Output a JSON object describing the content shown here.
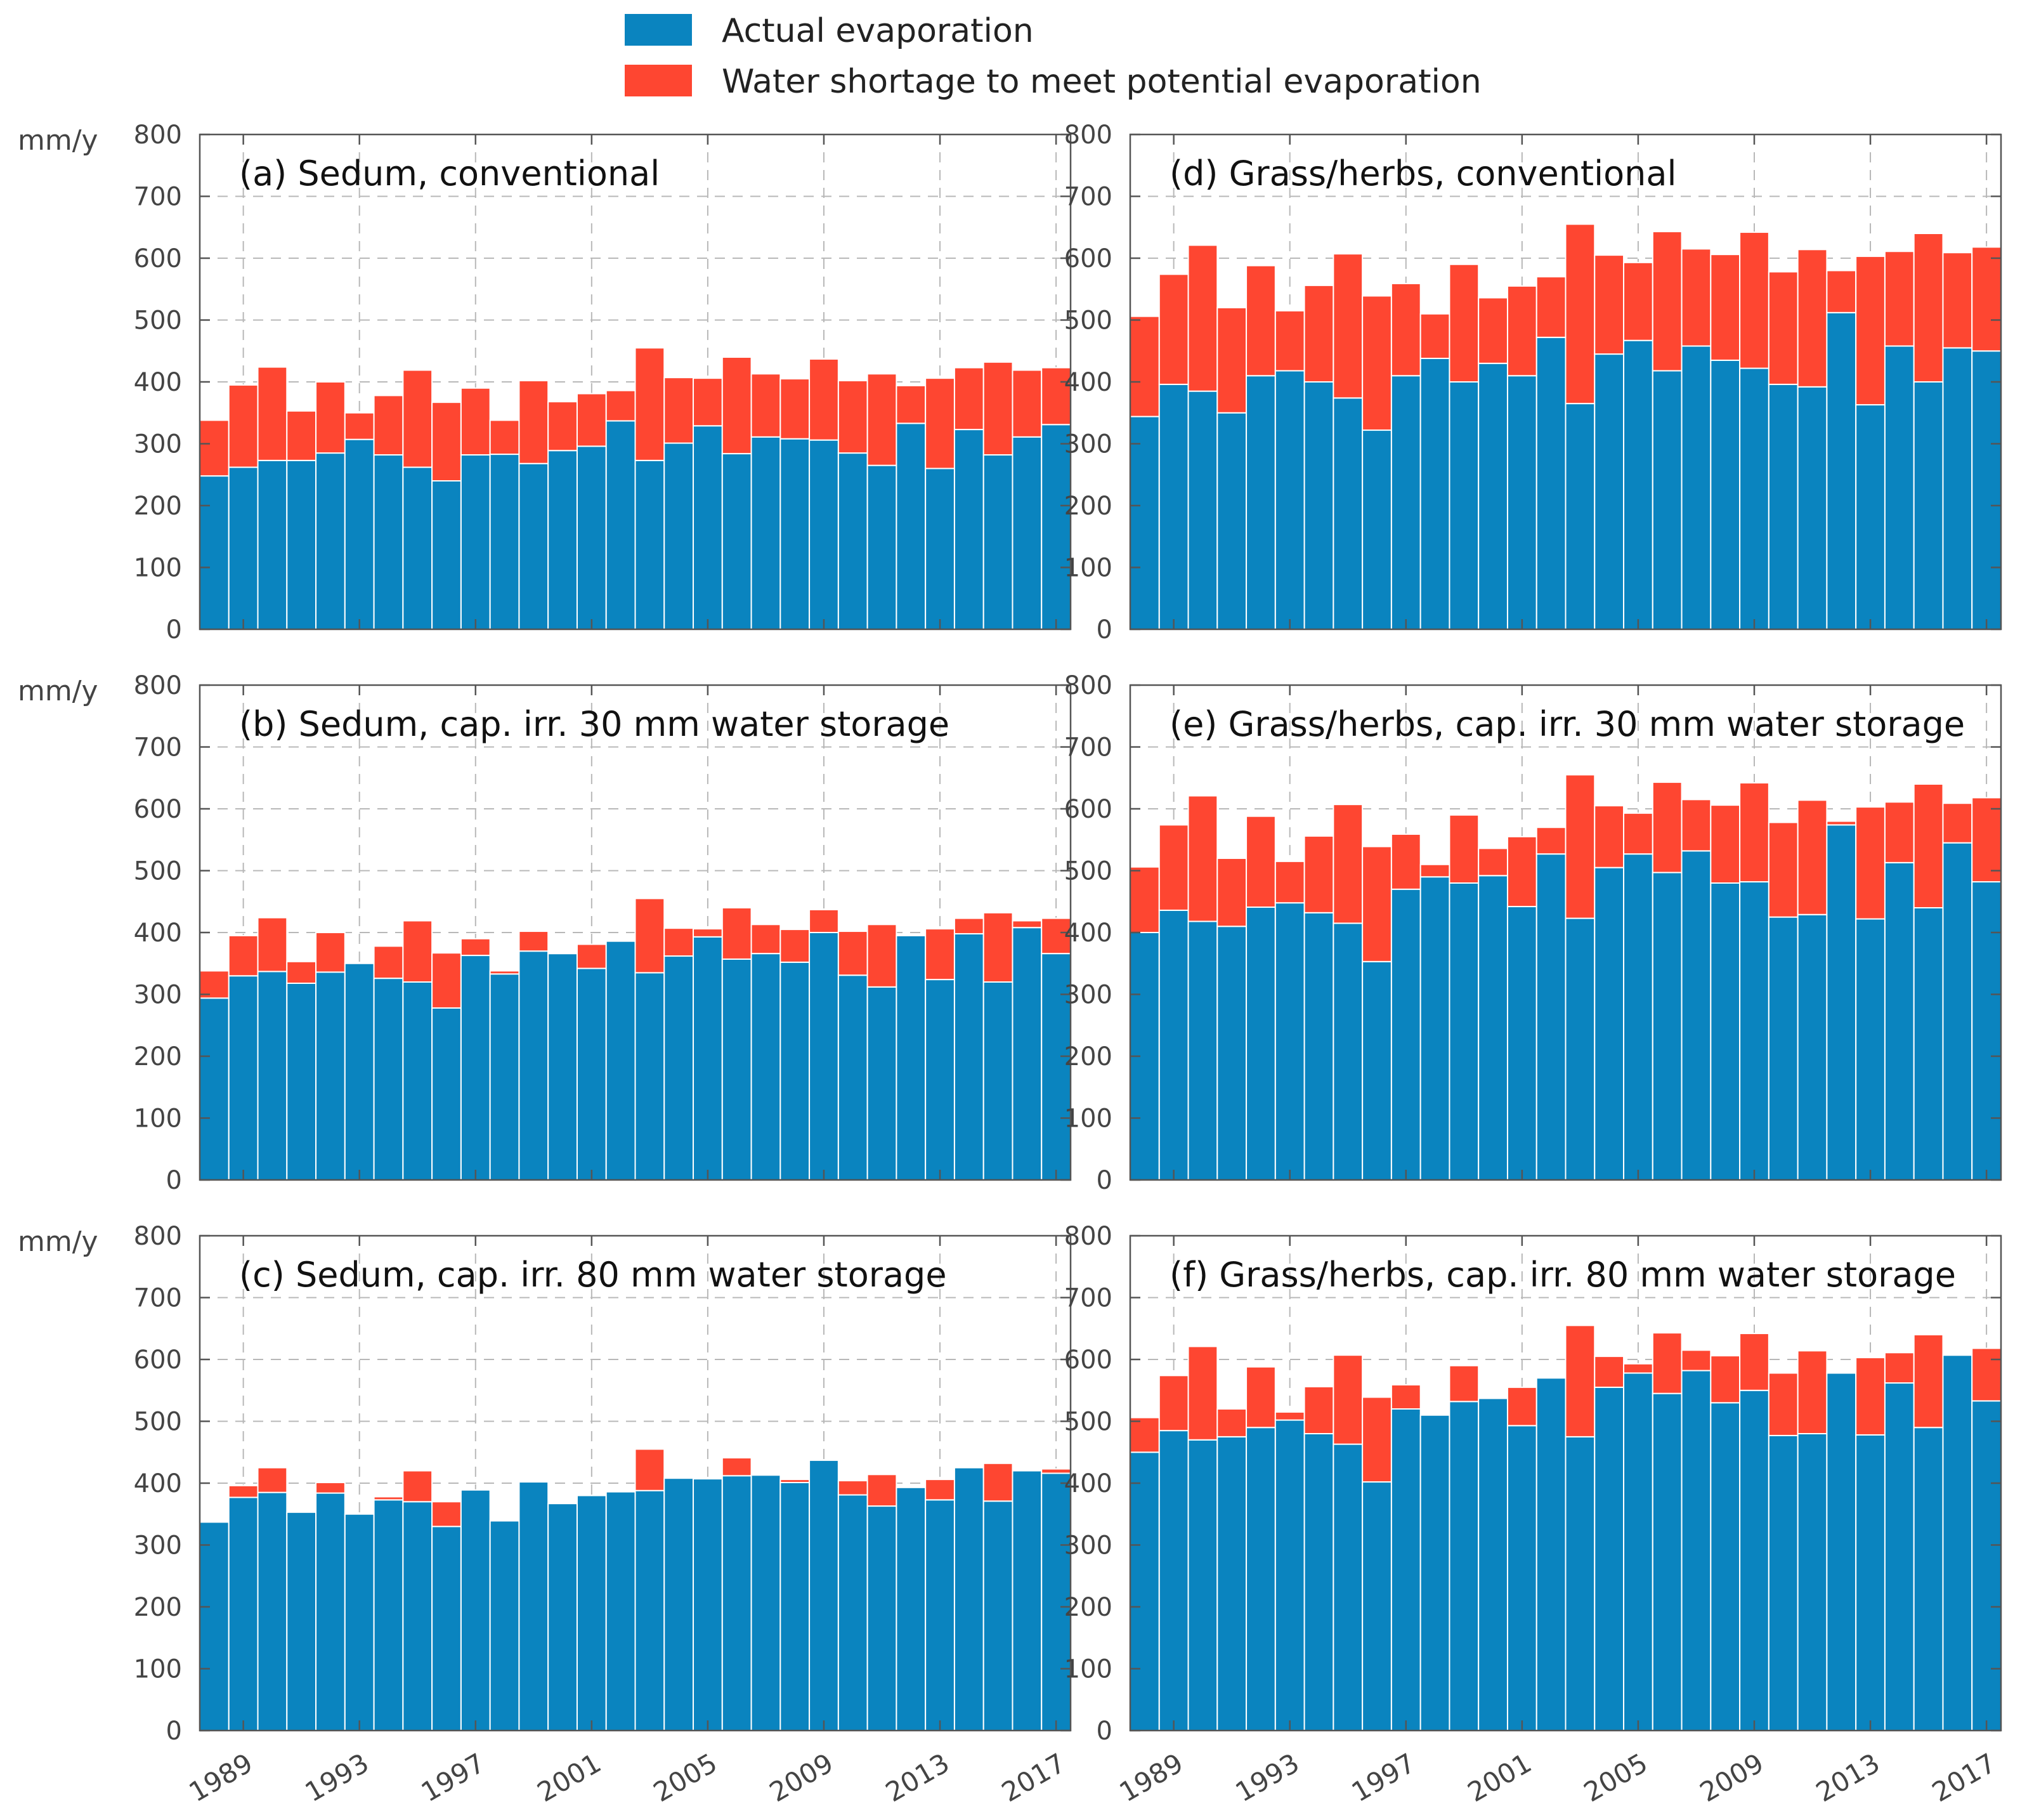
{
  "figure": {
    "unit_label": "mm/y",
    "legend": [
      {
        "label": "Actual evaporation",
        "color": "#0a84bf"
      },
      {
        "label": "Water shortage to meet potential evaporation",
        "color": "#fe4631"
      }
    ]
  },
  "chart_data": [
    {
      "type": "bar",
      "stacked": true,
      "panel": "a",
      "title": "(a) Sedum, conventional",
      "xlabel": "",
      "ylabel": "mm/y",
      "ylim": [
        0,
        800
      ],
      "yticks": [
        0,
        100,
        200,
        300,
        400,
        500,
        600,
        700,
        800
      ],
      "categories": [
        1988,
        1989,
        1990,
        1991,
        1992,
        1993,
        1994,
        1995,
        1996,
        1997,
        1998,
        1999,
        2000,
        2001,
        2002,
        2003,
        2004,
        2005,
        2006,
        2007,
        2008,
        2009,
        2010,
        2011,
        2012,
        2013,
        2014,
        2015,
        2016,
        2017
      ],
      "xtick_labels": [
        "1989",
        "1993",
        "1997",
        "2001",
        "2005",
        "2009",
        "2013",
        "2017"
      ],
      "grid": true,
      "series": [
        {
          "name": "Actual evaporation",
          "values": [
            248,
            262,
            273,
            273,
            285,
            307,
            282,
            262,
            240,
            282,
            283,
            268,
            289,
            296,
            337,
            273,
            301,
            329,
            284,
            311,
            308,
            306,
            285,
            265,
            333,
            260,
            323,
            282,
            311,
            331
          ]
        },
        {
          "name": "Water shortage to meet potential evaporation",
          "values": [
            90,
            133,
            151,
            80,
            115,
            43,
            96,
            157,
            127,
            108,
            55,
            134,
            79,
            85,
            49,
            182,
            106,
            77,
            156,
            102,
            97,
            131,
            117,
            148,
            61,
            146,
            100,
            150,
            108,
            92
          ]
        }
      ]
    },
    {
      "type": "bar",
      "stacked": true,
      "panel": "b",
      "title": "(b) Sedum, cap. irr. 30 mm water storage",
      "xlabel": "",
      "ylabel": "mm/y",
      "ylim": [
        0,
        800
      ],
      "yticks": [
        0,
        100,
        200,
        300,
        400,
        500,
        600,
        700,
        800
      ],
      "categories": [
        1988,
        1989,
        1990,
        1991,
        1992,
        1993,
        1994,
        1995,
        1996,
        1997,
        1998,
        1999,
        2000,
        2001,
        2002,
        2003,
        2004,
        2005,
        2006,
        2007,
        2008,
        2009,
        2010,
        2011,
        2012,
        2013,
        2014,
        2015,
        2016,
        2017
      ],
      "xtick_labels": [
        "1989",
        "1993",
        "1997",
        "2001",
        "2005",
        "2009",
        "2013",
        "2017"
      ],
      "grid": true,
      "series": [
        {
          "name": "Actual evaporation",
          "values": [
            294,
            330,
            337,
            318,
            336,
            350,
            326,
            320,
            278,
            363,
            333,
            370,
            366,
            342,
            386,
            335,
            362,
            393,
            357,
            366,
            352,
            400,
            331,
            312,
            395,
            324,
            398,
            320,
            408,
            366
          ]
        },
        {
          "name": "Water shortage to meet potential evaporation",
          "values": [
            44,
            65,
            87,
            35,
            64,
            0,
            52,
            99,
            89,
            27,
            5,
            32,
            2,
            39,
            0,
            120,
            45,
            13,
            83,
            47,
            53,
            37,
            71,
            101,
            0,
            82,
            25,
            112,
            11,
            57
          ]
        }
      ]
    },
    {
      "type": "bar",
      "stacked": true,
      "panel": "c",
      "title": "(c) Sedum, cap. irr. 80 mm water storage",
      "xlabel": "",
      "ylabel": "mm/y",
      "ylim": [
        0,
        800
      ],
      "yticks": [
        0,
        100,
        200,
        300,
        400,
        500,
        600,
        700,
        800
      ],
      "categories": [
        1988,
        1989,
        1990,
        1991,
        1992,
        1993,
        1994,
        1995,
        1996,
        1997,
        1998,
        1999,
        2000,
        2001,
        2002,
        2003,
        2004,
        2005,
        2006,
        2007,
        2008,
        2009,
        2010,
        2011,
        2012,
        2013,
        2014,
        2015,
        2016,
        2017
      ],
      "xtick_labels": [
        "1989",
        "1993",
        "1997",
        "2001",
        "2005",
        "2009",
        "2013",
        "2017"
      ],
      "grid": true,
      "series": [
        {
          "name": "Actual evaporation",
          "values": [
            337,
            377,
            385,
            353,
            384,
            350,
            373,
            370,
            330,
            389,
            339,
            402,
            367,
            380,
            386,
            388,
            408,
            407,
            412,
            413,
            401,
            437,
            381,
            363,
            393,
            373,
            425,
            371,
            420,
            416
          ]
        },
        {
          "name": "Water shortage to meet potential evaporation",
          "values": [
            0,
            19,
            40,
            0,
            17,
            0,
            5,
            50,
            40,
            0,
            0,
            0,
            0,
            0,
            0,
            67,
            0,
            0,
            29,
            0,
            5,
            0,
            23,
            51,
            0,
            33,
            0,
            61,
            0,
            7
          ]
        }
      ]
    },
    {
      "type": "bar",
      "stacked": true,
      "panel": "d",
      "title": "(d) Grass/herbs, conventional",
      "xlabel": "",
      "ylabel": "mm/y",
      "ylim": [
        0,
        800
      ],
      "yticks": [
        0,
        100,
        200,
        300,
        400,
        500,
        600,
        700,
        800
      ],
      "categories": [
        1988,
        1989,
        1990,
        1991,
        1992,
        1993,
        1994,
        1995,
        1996,
        1997,
        1998,
        1999,
        2000,
        2001,
        2002,
        2003,
        2004,
        2005,
        2006,
        2007,
        2008,
        2009,
        2010,
        2011,
        2012,
        2013,
        2014,
        2015,
        2016,
        2017
      ],
      "xtick_labels": [
        "1989",
        "1993",
        "1997",
        "2001",
        "2005",
        "2009",
        "2013",
        "2017"
      ],
      "grid": true,
      "series": [
        {
          "name": "Actual evaporation",
          "values": [
            344,
            396,
            385,
            350,
            410,
            418,
            400,
            374,
            322,
            410,
            438,
            400,
            430,
            410,
            472,
            365,
            445,
            467,
            418,
            458,
            435,
            422,
            396,
            392,
            512,
            363,
            458,
            400,
            455,
            450
          ]
        },
        {
          "name": "Water shortage to meet potential evaporation",
          "values": [
            162,
            178,
            236,
            170,
            178,
            97,
            156,
            233,
            217,
            149,
            72,
            190,
            106,
            145,
            98,
            290,
            160,
            126,
            225,
            157,
            171,
            220,
            182,
            222,
            68,
            240,
            153,
            240,
            154,
            168
          ]
        }
      ]
    },
    {
      "type": "bar",
      "stacked": true,
      "panel": "e",
      "title": "(e) Grass/herbs, cap. irr. 30 mm water storage",
      "xlabel": "",
      "ylabel": "mm/y",
      "ylim": [
        0,
        800
      ],
      "yticks": [
        0,
        100,
        200,
        300,
        400,
        500,
        600,
        700,
        800
      ],
      "categories": [
        1988,
        1989,
        1990,
        1991,
        1992,
        1993,
        1994,
        1995,
        1996,
        1997,
        1998,
        1999,
        2000,
        2001,
        2002,
        2003,
        2004,
        2005,
        2006,
        2007,
        2008,
        2009,
        2010,
        2011,
        2012,
        2013,
        2014,
        2015,
        2016,
        2017
      ],
      "xtick_labels": [
        "1989",
        "1993",
        "1997",
        "2001",
        "2005",
        "2009",
        "2013",
        "2017"
      ],
      "grid": true,
      "series": [
        {
          "name": "Actual evaporation",
          "values": [
            400,
            436,
            418,
            410,
            441,
            448,
            432,
            415,
            353,
            470,
            490,
            480,
            492,
            442,
            527,
            423,
            505,
            527,
            497,
            532,
            480,
            482,
            425,
            429,
            574,
            422,
            513,
            440,
            545,
            482
          ]
        },
        {
          "name": "Water shortage to meet potential evaporation",
          "values": [
            106,
            138,
            203,
            110,
            147,
            67,
            124,
            192,
            186,
            89,
            20,
            110,
            44,
            113,
            43,
            232,
            100,
            66,
            146,
            83,
            126,
            160,
            153,
            185,
            6,
            181,
            98,
            200,
            64,
            136
          ]
        }
      ]
    },
    {
      "type": "bar",
      "stacked": true,
      "panel": "f",
      "title": "(f) Grass/herbs, cap. irr. 80 mm water storage",
      "xlabel": "",
      "ylabel": "mm/y",
      "ylim": [
        0,
        800
      ],
      "yticks": [
        0,
        100,
        200,
        300,
        400,
        500,
        600,
        700,
        800
      ],
      "categories": [
        1988,
        1989,
        1990,
        1991,
        1992,
        1993,
        1994,
        1995,
        1996,
        1997,
        1998,
        1999,
        2000,
        2001,
        2002,
        2003,
        2004,
        2005,
        2006,
        2007,
        2008,
        2009,
        2010,
        2011,
        2012,
        2013,
        2014,
        2015,
        2016,
        2017
      ],
      "xtick_labels": [
        "1989",
        "1993",
        "1997",
        "2001",
        "2005",
        "2009",
        "2013",
        "2017"
      ],
      "grid": true,
      "series": [
        {
          "name": "Actual evaporation",
          "values": [
            450,
            485,
            470,
            475,
            490,
            502,
            480,
            463,
            402,
            520,
            510,
            532,
            537,
            493,
            570,
            475,
            555,
            578,
            545,
            582,
            530,
            550,
            477,
            480,
            578,
            478,
            562,
            490,
            607,
            533
          ]
        },
        {
          "name": "Water shortage to meet potential evaporation",
          "values": [
            56,
            89,
            151,
            45,
            98,
            13,
            76,
            144,
            137,
            39,
            0,
            58,
            0,
            62,
            0,
            180,
            50,
            15,
            98,
            33,
            76,
            92,
            101,
            134,
            2,
            125,
            49,
            150,
            2,
            85
          ]
        }
      ]
    }
  ]
}
